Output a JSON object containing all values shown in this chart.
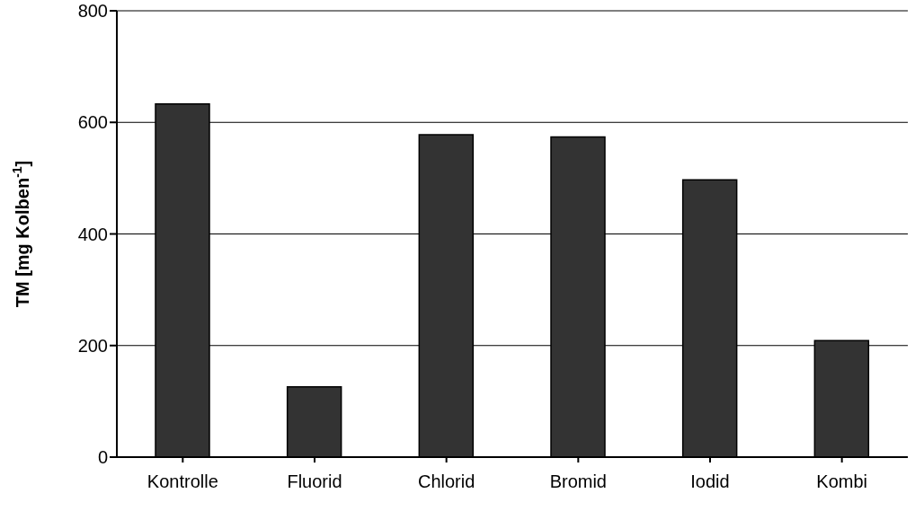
{
  "chart_data": {
    "type": "bar",
    "ylabel": "TM [mg Kolben$^{-1}$]",
    "categories": [
      "Kontrolle",
      "Fluorid",
      "Chlorid",
      "Bromid",
      "Iodid",
      "Kombi"
    ],
    "values": [
      633,
      126,
      578,
      574,
      497,
      209
    ],
    "color": "#333333",
    "ylim": [
      0,
      800
    ],
    "yticks": [
      0,
      200,
      400,
      600,
      800
    ],
    "grid": "y"
  }
}
